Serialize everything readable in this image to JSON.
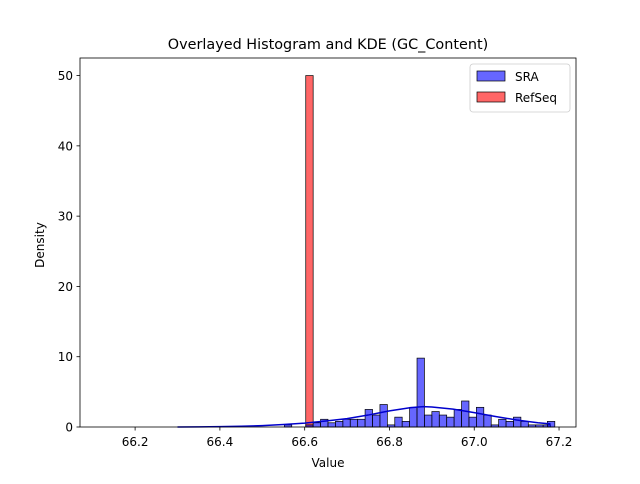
{
  "chart_data": {
    "type": "bar",
    "title": "Overlayed Histogram and KDE (GC_Content)",
    "xlabel": "Value",
    "ylabel": "Density",
    "xlim": [
      66.07,
      67.24
    ],
    "ylim": [
      0,
      52.5
    ],
    "xticks": [
      66.2,
      66.4,
      66.6,
      66.8,
      67.0,
      67.2
    ],
    "yticks": [
      0,
      10,
      20,
      30,
      40,
      50
    ],
    "xtick_labels": [
      "66.2",
      "66.4",
      "66.6",
      "66.8",
      "67.0",
      "67.2"
    ],
    "ytick_labels": [
      "0",
      "10",
      "20",
      "30",
      "40",
      "50"
    ],
    "legend_position": "top-right",
    "bin_width": 0.0175,
    "series": [
      {
        "name": "SRA",
        "color": "#0000ff",
        "fill_opacity": 0.6,
        "bins": [
          {
            "x": 66.552,
            "y": 0.3
          },
          {
            "x": 66.6025,
            "y": 0.3
          },
          {
            "x": 66.62,
            "y": 0.6
          },
          {
            "x": 66.6375,
            "y": 1.1
          },
          {
            "x": 66.655,
            "y": 0.6
          },
          {
            "x": 66.6725,
            "y": 0.8
          },
          {
            "x": 66.69,
            "y": 1.1
          },
          {
            "x": 66.7075,
            "y": 1.1
          },
          {
            "x": 66.725,
            "y": 1.1
          },
          {
            "x": 66.7425,
            "y": 2.5
          },
          {
            "x": 66.76,
            "y": 1.7
          },
          {
            "x": 66.7775,
            "y": 3.2
          },
          {
            "x": 66.795,
            "y": 0.3
          },
          {
            "x": 66.8125,
            "y": 1.4
          },
          {
            "x": 66.83,
            "y": 0.8
          },
          {
            "x": 66.8475,
            "y": 2.8
          },
          {
            "x": 66.865,
            "y": 9.8
          },
          {
            "x": 66.8825,
            "y": 1.7
          },
          {
            "x": 66.9,
            "y": 2.2
          },
          {
            "x": 66.9175,
            "y": 1.7
          },
          {
            "x": 66.935,
            "y": 1.4
          },
          {
            "x": 66.9525,
            "y": 2.5
          },
          {
            "x": 66.97,
            "y": 3.7
          },
          {
            "x": 66.9875,
            "y": 1.4
          },
          {
            "x": 67.005,
            "y": 2.8
          },
          {
            "x": 67.0225,
            "y": 1.7
          },
          {
            "x": 67.04,
            "y": 0.3
          },
          {
            "x": 67.0575,
            "y": 1.1
          },
          {
            "x": 67.075,
            "y": 0.8
          },
          {
            "x": 67.0925,
            "y": 1.4
          },
          {
            "x": 67.11,
            "y": 0.8
          },
          {
            "x": 67.1275,
            "y": 0.3
          },
          {
            "x": 67.145,
            "y": 0.3
          },
          {
            "x": 67.1625,
            "y": 0.3
          },
          {
            "x": 67.1725,
            "y": 0.8
          }
        ],
        "kde": {
          "x": [
            66.3,
            66.35,
            66.4,
            66.45,
            66.5,
            66.55,
            66.6,
            66.65,
            66.7,
            66.75,
            66.8,
            66.85,
            66.88,
            66.9,
            66.95,
            67.0,
            67.05,
            67.1,
            67.15,
            67.18
          ],
          "y": [
            0.0,
            0.02,
            0.05,
            0.1,
            0.2,
            0.35,
            0.55,
            0.85,
            1.2,
            1.7,
            2.3,
            2.75,
            2.9,
            2.85,
            2.55,
            2.05,
            1.5,
            1.0,
            0.6,
            0.45
          ]
        }
      },
      {
        "name": "RefSeq",
        "color": "#ff0000",
        "fill_opacity": 0.6,
        "bins": [
          {
            "x": 66.6025,
            "y": 50.0
          }
        ]
      }
    ]
  }
}
